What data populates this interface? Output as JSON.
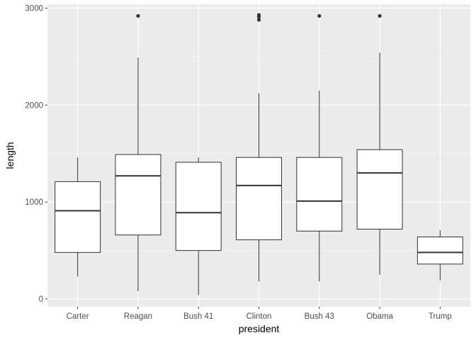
{
  "chart_data": {
    "type": "boxplot",
    "xlabel": "president",
    "ylabel": "length",
    "ylim": [
      -80,
      3040
    ],
    "yticks": [
      0,
      1000,
      2000,
      3000
    ],
    "grid": true,
    "categories": [
      "Carter",
      "Reagan",
      "Bush 41",
      "Clinton",
      "Bush 43",
      "Obama",
      "Trump"
    ],
    "boxes": [
      {
        "category": "Carter",
        "whisker_low": 230,
        "q1": 480,
        "median": 910,
        "q3": 1210,
        "whisker_high": 1460,
        "outliers": []
      },
      {
        "category": "Reagan",
        "whisker_low": 80,
        "q1": 660,
        "median": 1270,
        "q3": 1490,
        "whisker_high": 2490,
        "outliers": [
          2920
        ]
      },
      {
        "category": "Bush 41",
        "whisker_low": 40,
        "q1": 500,
        "median": 890,
        "q3": 1410,
        "whisker_high": 1460,
        "outliers": []
      },
      {
        "category": "Clinton",
        "whisker_low": 180,
        "q1": 610,
        "median": 1170,
        "q3": 1460,
        "whisker_high": 2120,
        "outliers": [
          2880,
          2910,
          2930
        ]
      },
      {
        "category": "Bush 43",
        "whisker_low": 180,
        "q1": 700,
        "median": 1010,
        "q3": 1460,
        "whisker_high": 2150,
        "outliers": [
          2920
        ]
      },
      {
        "category": "Obama",
        "whisker_low": 250,
        "q1": 720,
        "median": 1300,
        "q3": 1540,
        "whisker_high": 2540,
        "outliers": [
          2920
        ]
      },
      {
        "category": "Trump",
        "whisker_low": 190,
        "q1": 360,
        "median": 480,
        "q3": 640,
        "whisker_high": 710,
        "outliers": []
      }
    ],
    "colors": {
      "panel_background": "#ebebeb",
      "grid_major": "#ffffff",
      "box_fill": "#ffffff",
      "box_stroke": "#333333",
      "outlier": "#333333"
    }
  }
}
